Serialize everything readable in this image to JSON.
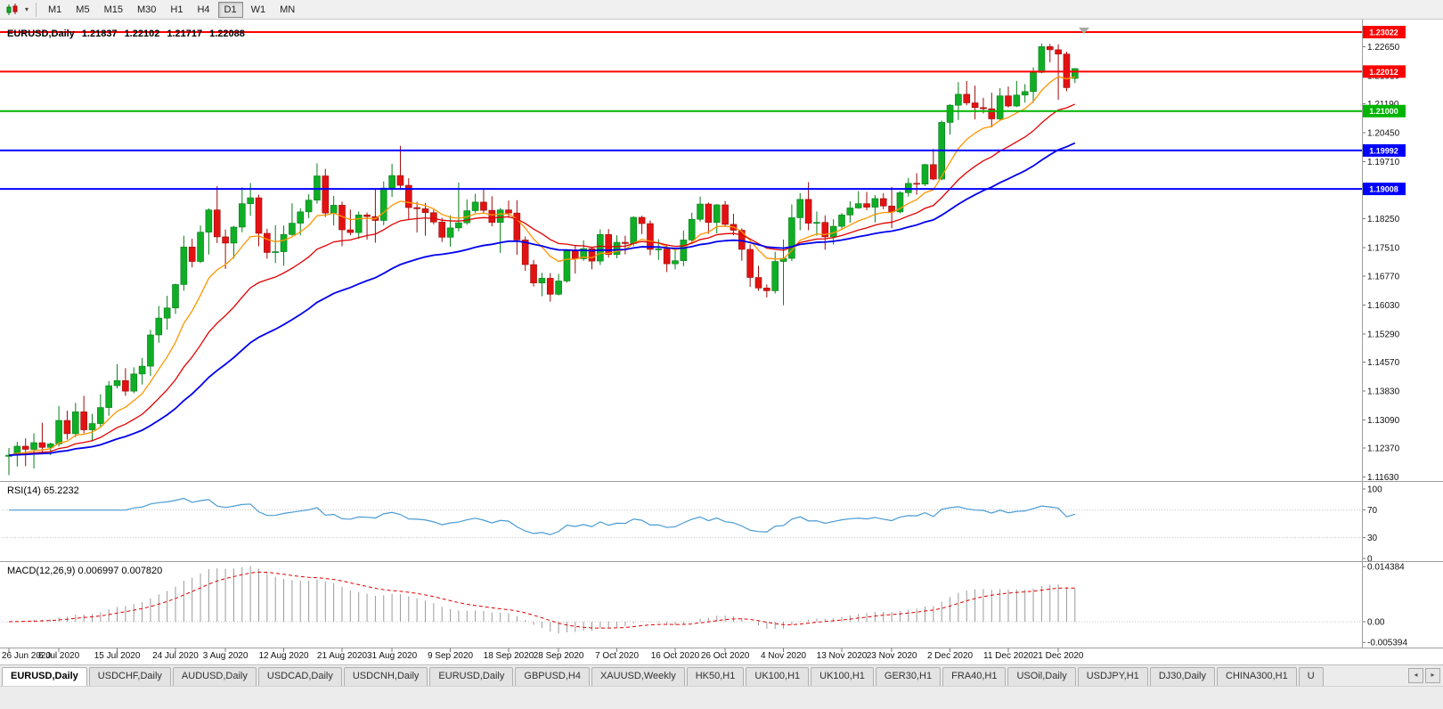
{
  "toolbar": {
    "timeframes": [
      "M1",
      "M5",
      "M15",
      "M30",
      "H1",
      "H4",
      "D1",
      "W1",
      "MN"
    ],
    "active_timeframe": "D1"
  },
  "colors": {
    "candle_up": "#0fae26",
    "candle_up_border": "#067d18",
    "candle_down": "#e31212",
    "candle_down_border": "#9c0b0b",
    "ma_fast": "#ff9500",
    "ma_medium": "#e00000",
    "ma_slow": "#0000ee",
    "rsi_line": "#4a9bd4",
    "macd_histogram": "#9a9a9a",
    "macd_signal": "#e00000"
  },
  "chart_data": {
    "type": "candlestick",
    "title": "EURUSD,Daily",
    "ohlc_header": {
      "open": "1.21837",
      "high": "1.22102",
      "low": "1.21717",
      "close": "1.22088"
    },
    "y_axis": {
      "range": [
        1.1153,
        1.2316
      ],
      "labels": [
        "1.22650",
        "1.21910",
        "1.21190",
        "1.20450",
        "1.19710",
        "1.18970",
        "1.18250",
        "1.17510",
        "1.16770",
        "1.16030",
        "1.15290",
        "1.14570",
        "1.13830",
        "1.13090",
        "1.12370",
        "1.11630"
      ]
    },
    "x_axis": {
      "labels": [
        {
          "i": 0,
          "t": "26 Jun 2020"
        },
        {
          "i": 6,
          "t": "6 Jul 2020"
        },
        {
          "i": 13,
          "t": "15 Jul 2020"
        },
        {
          "i": 20,
          "t": "24 Jul 2020"
        },
        {
          "i": 26,
          "t": "3 Aug 2020"
        },
        {
          "i": 33,
          "t": "12 Aug 2020"
        },
        {
          "i": 40,
          "t": "21 Aug 2020"
        },
        {
          "i": 46,
          "t": "31 Aug 2020"
        },
        {
          "i": 53,
          "t": "9 Sep 2020"
        },
        {
          "i": 60,
          "t": "18 Sep 2020"
        },
        {
          "i": 66,
          "t": "28 Sep 2020"
        },
        {
          "i": 73,
          "t": "7 Oct 2020"
        },
        {
          "i": 80,
          "t": "16 Oct 2020"
        },
        {
          "i": 86,
          "t": "26 Oct 2020"
        },
        {
          "i": 93,
          "t": "4 Nov 2020"
        },
        {
          "i": 100,
          "t": "13 Nov 2020"
        },
        {
          "i": 106,
          "t": "23 Nov 2020"
        },
        {
          "i": 113,
          "t": "2 Dec 2020"
        },
        {
          "i": 120,
          "t": "11 Dec 2020"
        },
        {
          "i": 126,
          "t": "21 Dec 2020"
        }
      ]
    },
    "hlines": [
      {
        "price": 1.23022,
        "label": "1.23022",
        "color": "#ff0000"
      },
      {
        "price": 1.22012,
        "label": "1.22012",
        "color": "#ff0000"
      },
      {
        "price": 1.21,
        "label": "1.21000",
        "color": "#00b400"
      },
      {
        "price": 1.19992,
        "label": "1.19992",
        "color": "#0000ff"
      },
      {
        "price": 1.19008,
        "label": "1.19008",
        "color": "#0000ff"
      }
    ],
    "indicators": {
      "rsi": {
        "label": "RSI(14) 65.2232",
        "value": "65.2232",
        "levels": [
          70,
          30
        ],
        "axis_labels": [
          "100",
          "70",
          "30",
          "0"
        ],
        "range": [
          0,
          100
        ]
      },
      "macd": {
        "label": "MACD(12,26,9) 0.006997 0.007820",
        "values": [
          "0.006997",
          "0.007820"
        ],
        "axis_labels": [
          "0.014384",
          "0.00",
          "-0.005394"
        ]
      }
    },
    "candles": [
      [
        1.1216,
        1.1237,
        1.1168,
        1.1219
      ],
      [
        1.1219,
        1.1253,
        1.119,
        1.1242
      ],
      [
        1.1242,
        1.1262,
        1.1191,
        1.1234
      ],
      [
        1.1234,
        1.1275,
        1.1185,
        1.1251
      ],
      [
        1.1251,
        1.1302,
        1.1223,
        1.1239
      ],
      [
        1.1239,
        1.1251,
        1.1219,
        1.1248
      ],
      [
        1.1248,
        1.1345,
        1.1241,
        1.1308
      ],
      [
        1.1308,
        1.1333,
        1.1259,
        1.1274
      ],
      [
        1.1274,
        1.1353,
        1.1265,
        1.133
      ],
      [
        1.133,
        1.1371,
        1.1275,
        1.1284
      ],
      [
        1.1284,
        1.1325,
        1.1254,
        1.13
      ],
      [
        1.13,
        1.1375,
        1.1292,
        1.1341
      ],
      [
        1.1341,
        1.1409,
        1.132,
        1.1397
      ],
      [
        1.1397,
        1.1452,
        1.139,
        1.141
      ],
      [
        1.141,
        1.1442,
        1.1371,
        1.1383
      ],
      [
        1.1383,
        1.1444,
        1.1378,
        1.1427
      ],
      [
        1.1427,
        1.1468,
        1.14,
        1.1447
      ],
      [
        1.1447,
        1.154,
        1.1422,
        1.1527
      ],
      [
        1.1527,
        1.1601,
        1.1507,
        1.157
      ],
      [
        1.157,
        1.1627,
        1.154,
        1.1596
      ],
      [
        1.1596,
        1.1658,
        1.1581,
        1.1656
      ],
      [
        1.1656,
        1.1781,
        1.164,
        1.1752
      ],
      [
        1.1752,
        1.1773,
        1.17,
        1.1715
      ],
      [
        1.1715,
        1.1807,
        1.1711,
        1.179
      ],
      [
        1.179,
        1.1851,
        1.1733,
        1.1847
      ],
      [
        1.1847,
        1.1908,
        1.1762,
        1.1778
      ],
      [
        1.1778,
        1.1797,
        1.1696,
        1.1762
      ],
      [
        1.1762,
        1.1806,
        1.1722,
        1.1803
      ],
      [
        1.1803,
        1.1905,
        1.179,
        1.1863
      ],
      [
        1.1863,
        1.1916,
        1.1832,
        1.1878
      ],
      [
        1.1878,
        1.1886,
        1.1754,
        1.1787
      ],
      [
        1.1787,
        1.1799,
        1.1722,
        1.1738
      ],
      [
        1.1738,
        1.1808,
        1.1711,
        1.174
      ],
      [
        1.174,
        1.1807,
        1.1704,
        1.1784
      ],
      [
        1.1784,
        1.1864,
        1.1781,
        1.1813
      ],
      [
        1.1813,
        1.1851,
        1.1782,
        1.1842
      ],
      [
        1.1842,
        1.1887,
        1.1826,
        1.1872
      ],
      [
        1.1872,
        1.1966,
        1.1863,
        1.1934
      ],
      [
        1.1934,
        1.1952,
        1.1829,
        1.1839
      ],
      [
        1.1839,
        1.1883,
        1.1807,
        1.1859
      ],
      [
        1.1859,
        1.1868,
        1.1754,
        1.1796
      ],
      [
        1.1796,
        1.1848,
        1.1782,
        1.1789
      ],
      [
        1.1789,
        1.1843,
        1.1773,
        1.1834
      ],
      [
        1.1834,
        1.184,
        1.1771,
        1.183
      ],
      [
        1.183,
        1.19,
        1.1763,
        1.182
      ],
      [
        1.182,
        1.192,
        1.1808,
        1.1903
      ],
      [
        1.1903,
        1.1965,
        1.188,
        1.1935
      ],
      [
        1.1935,
        1.2011,
        1.1901,
        1.191
      ],
      [
        1.191,
        1.1928,
        1.1822,
        1.1853
      ],
      [
        1.1853,
        1.1868,
        1.1789,
        1.185
      ],
      [
        1.185,
        1.1865,
        1.1781,
        1.184
      ],
      [
        1.184,
        1.1848,
        1.181,
        1.1816
      ],
      [
        1.1816,
        1.1827,
        1.1765,
        1.1777
      ],
      [
        1.1777,
        1.1833,
        1.1753,
        1.1801
      ],
      [
        1.1801,
        1.1917,
        1.1792,
        1.1814
      ],
      [
        1.1814,
        1.1874,
        1.1809,
        1.1845
      ],
      [
        1.1845,
        1.1888,
        1.1839,
        1.1867
      ],
      [
        1.1867,
        1.19,
        1.1838,
        1.1846
      ],
      [
        1.1846,
        1.1882,
        1.1805,
        1.1815
      ],
      [
        1.1815,
        1.1852,
        1.1737,
        1.1847
      ],
      [
        1.1847,
        1.1871,
        1.1827,
        1.1839
      ],
      [
        1.1839,
        1.1872,
        1.1732,
        1.177
      ],
      [
        1.177,
        1.1779,
        1.1691,
        1.1707
      ],
      [
        1.1707,
        1.1719,
        1.1651,
        1.166
      ],
      [
        1.166,
        1.1686,
        1.1626,
        1.1672
      ],
      [
        1.1672,
        1.1685,
        1.1612,
        1.1631
      ],
      [
        1.1631,
        1.1683,
        1.1628,
        1.1665
      ],
      [
        1.1665,
        1.1745,
        1.1661,
        1.1742
      ],
      [
        1.1742,
        1.1755,
        1.1684,
        1.1722
      ],
      [
        1.1722,
        1.1769,
        1.1717,
        1.1748
      ],
      [
        1.1748,
        1.1752,
        1.1695,
        1.1716
      ],
      [
        1.1716,
        1.1797,
        1.1706,
        1.1784
      ],
      [
        1.1784,
        1.1798,
        1.1725,
        1.1733
      ],
      [
        1.1733,
        1.1782,
        1.1723,
        1.1764
      ],
      [
        1.1764,
        1.1781,
        1.1733,
        1.1761
      ],
      [
        1.1761,
        1.1831,
        1.1754,
        1.1828
      ],
      [
        1.1828,
        1.1832,
        1.1785,
        1.1812
      ],
      [
        1.1812,
        1.182,
        1.1731,
        1.1746
      ],
      [
        1.1746,
        1.1772,
        1.1719,
        1.1747
      ],
      [
        1.1747,
        1.1758,
        1.1688,
        1.1709
      ],
      [
        1.1709,
        1.1746,
        1.1695,
        1.1717
      ],
      [
        1.1717,
        1.1794,
        1.1703,
        1.177
      ],
      [
        1.177,
        1.184,
        1.1762,
        1.1823
      ],
      [
        1.1823,
        1.1881,
        1.1817,
        1.1862
      ],
      [
        1.1862,
        1.1866,
        1.1786,
        1.1815
      ],
      [
        1.1815,
        1.1862,
        1.1787,
        1.186
      ],
      [
        1.186,
        1.187,
        1.1803,
        1.181
      ],
      [
        1.181,
        1.1837,
        1.1782,
        1.1795
      ],
      [
        1.1795,
        1.18,
        1.1717,
        1.1746
      ],
      [
        1.1746,
        1.1759,
        1.165,
        1.1674
      ],
      [
        1.1674,
        1.1704,
        1.164,
        1.1647
      ],
      [
        1.1647,
        1.1656,
        1.1623,
        1.164
      ],
      [
        1.164,
        1.174,
        1.1633,
        1.1715
      ],
      [
        1.1715,
        1.1771,
        1.1603,
        1.1723
      ],
      [
        1.1723,
        1.1861,
        1.1716,
        1.1827
      ],
      [
        1.1827,
        1.189,
        1.1795,
        1.1874
      ],
      [
        1.1874,
        1.1918,
        1.1795,
        1.1813
      ],
      [
        1.1813,
        1.1843,
        1.1781,
        1.1815
      ],
      [
        1.1815,
        1.1833,
        1.1745,
        1.1778
      ],
      [
        1.1778,
        1.1823,
        1.1758,
        1.1805
      ],
      [
        1.1805,
        1.1839,
        1.1799,
        1.1834
      ],
      [
        1.1834,
        1.1869,
        1.1814,
        1.1852
      ],
      [
        1.1852,
        1.1895,
        1.185,
        1.1863
      ],
      [
        1.1863,
        1.1893,
        1.1846,
        1.1854
      ],
      [
        1.1854,
        1.1885,
        1.1815,
        1.1876
      ],
      [
        1.1876,
        1.189,
        1.1849,
        1.1857
      ],
      [
        1.1857,
        1.1906,
        1.18,
        1.1842
      ],
      [
        1.1842,
        1.1895,
        1.1838,
        1.1891
      ],
      [
        1.1891,
        1.1929,
        1.1881,
        1.1915
      ],
      [
        1.1915,
        1.1941,
        1.1886,
        1.1913
      ],
      [
        1.1913,
        1.1965,
        1.1908,
        1.1963
      ],
      [
        1.1963,
        1.2003,
        1.1923,
        1.1926
      ],
      [
        1.1926,
        1.2076,
        1.1923,
        1.2071
      ],
      [
        1.2071,
        1.2118,
        1.204,
        1.2115
      ],
      [
        1.2115,
        1.2174,
        1.2077,
        1.2143
      ],
      [
        1.2143,
        1.2177,
        1.2115,
        1.2121
      ],
      [
        1.2121,
        1.2165,
        1.2079,
        1.2109
      ],
      [
        1.2109,
        1.2134,
        1.2094,
        1.2106
      ],
      [
        1.2106,
        1.2147,
        1.2058,
        1.208
      ],
      [
        1.208,
        1.2159,
        1.2075,
        1.2139
      ],
      [
        1.2139,
        1.2163,
        1.2109,
        1.2113
      ],
      [
        1.2113,
        1.2177,
        1.211,
        1.2141
      ],
      [
        1.2141,
        1.2169,
        1.2122,
        1.215
      ],
      [
        1.215,
        1.2212,
        1.2121,
        1.2199
      ],
      [
        1.2199,
        1.2273,
        1.2197,
        1.2265
      ],
      [
        1.2265,
        1.2272,
        1.2225,
        1.2257
      ],
      [
        1.2257,
        1.2271,
        1.2129,
        1.2246
      ],
      [
        1.2246,
        1.2252,
        1.2151,
        1.216
      ],
      [
        1.21837,
        1.22102,
        1.21717,
        1.22088
      ]
    ]
  },
  "tabs": {
    "items": [
      {
        "label": "EURUSD,Daily",
        "active": true
      },
      {
        "label": "USDCHF,Daily",
        "active": false
      },
      {
        "label": "AUDUSD,Daily",
        "active": false
      },
      {
        "label": "USDCAD,Daily",
        "active": false
      },
      {
        "label": "USDCNH,Daily",
        "active": false
      },
      {
        "label": "EURUSD,Daily",
        "active": false
      },
      {
        "label": "GBPUSD,H4",
        "active": false
      },
      {
        "label": "XAUUSD,Weekly",
        "active": false
      },
      {
        "label": "HK50,H1",
        "active": false
      },
      {
        "label": "UK100,H1",
        "active": false
      },
      {
        "label": "UK100,H1",
        "active": false
      },
      {
        "label": "GER30,H1",
        "active": false
      },
      {
        "label": "FRA40,H1",
        "active": false
      },
      {
        "label": "USOil,Daily",
        "active": false
      },
      {
        "label": "USDJPY,H1",
        "active": false
      },
      {
        "label": "DJ30,Daily",
        "active": false
      },
      {
        "label": "CHINA300,H1",
        "active": false
      },
      {
        "label": "U",
        "active": false
      }
    ],
    "scroll_left": "◂",
    "scroll_right": "▸"
  }
}
